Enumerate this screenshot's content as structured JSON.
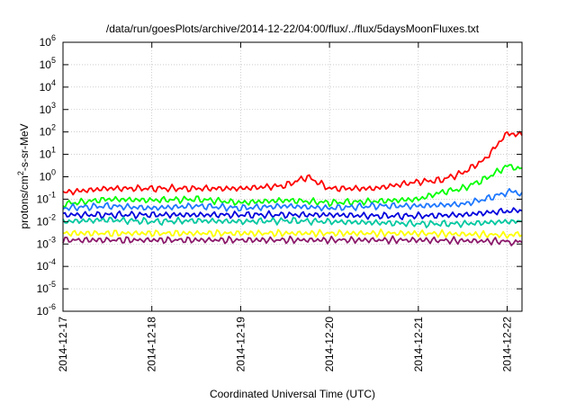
{
  "chart_data": {
    "type": "line",
    "title": "/data/run/goesPlots/archive/2014-12-22/04:00/flux/../flux/5daysMoonFluxes.txt",
    "xlabel": "Coordinated Universal Time (UTC)",
    "ylabel": {
      "pre": "protons/cm",
      "sup": "2",
      "post": "-s-sr-MeV"
    },
    "y_scale": "log",
    "ylim": [
      1e-06,
      1000000.0
    ],
    "y_ticks": [
      {
        "base": "10",
        "exp": "-6",
        "value": 1e-06
      },
      {
        "base": "10",
        "exp": "-5",
        "value": 1e-05
      },
      {
        "base": "10",
        "exp": "-4",
        "value": 0.0001
      },
      {
        "base": "10",
        "exp": "-3",
        "value": 0.001
      },
      {
        "base": "10",
        "exp": "-2",
        "value": 0.01
      },
      {
        "base": "10",
        "exp": "-1",
        "value": 0.1
      },
      {
        "base": "10",
        "exp": "0",
        "value": 1
      },
      {
        "base": "10",
        "exp": "1",
        "value": 10
      },
      {
        "base": "10",
        "exp": "2",
        "value": 100
      },
      {
        "base": "10",
        "exp": "3",
        "value": 1000
      },
      {
        "base": "10",
        "exp": "4",
        "value": 10000
      },
      {
        "base": "10",
        "exp": "5",
        "value": 100000
      },
      {
        "base": "10",
        "exp": "6",
        "value": 1000000
      }
    ],
    "x_ticks": [
      "2014-12-17",
      "2014-12-18",
      "2014-12-19",
      "2014-12-20",
      "2014-12-21",
      "2014-12-22"
    ],
    "xlim": [
      "2014-12-17T00:00",
      "2014-12-22T04:00"
    ],
    "grid": true,
    "legend": "none",
    "series": [
      {
        "color": "#ff0000",
        "x": [
          "2014-12-17T00:00",
          "2014-12-17T12:00",
          "2014-12-18T00:00",
          "2014-12-18T12:00",
          "2014-12-19T00:00",
          "2014-12-19T12:00",
          "2014-12-19T18:00",
          "2014-12-20T00:00",
          "2014-12-20T12:00",
          "2014-12-21T00:00",
          "2014-12-21T06:00",
          "2014-12-21T12:00",
          "2014-12-21T18:00",
          "2014-12-22T00:00",
          "2014-12-22T04:00"
        ],
        "y": [
          0.2,
          0.3,
          0.3,
          0.3,
          0.3,
          0.4,
          1.0,
          0.3,
          0.3,
          0.6,
          0.7,
          1.5,
          6,
          90,
          70
        ]
      },
      {
        "color": "#00ff00",
        "x": [
          "2014-12-17T00:00",
          "2014-12-17T12:00",
          "2014-12-18T00:00",
          "2014-12-18T12:00",
          "2014-12-19T00:00",
          "2014-12-19T12:00",
          "2014-12-20T00:00",
          "2014-12-20T12:00",
          "2014-12-21T00:00",
          "2014-12-21T06:00",
          "2014-12-21T12:00",
          "2014-12-21T18:00",
          "2014-12-22T00:00",
          "2014-12-22T04:00"
        ],
        "y": [
          0.06,
          0.1,
          0.09,
          0.1,
          0.07,
          0.09,
          0.07,
          0.08,
          0.1,
          0.2,
          0.3,
          0.8,
          3,
          2.5
        ]
      },
      {
        "color": "#1e78ff",
        "x": [
          "2014-12-17T00:00",
          "2014-12-17T12:00",
          "2014-12-18T00:00",
          "2014-12-18T12:00",
          "2014-12-19T00:00",
          "2014-12-19T12:00",
          "2014-12-20T00:00",
          "2014-12-20T12:00",
          "2014-12-21T00:00",
          "2014-12-21T12:00",
          "2014-12-21T18:00",
          "2014-12-22T00:00",
          "2014-12-22T04:00"
        ],
        "y": [
          0.04,
          0.05,
          0.04,
          0.05,
          0.04,
          0.05,
          0.04,
          0.05,
          0.05,
          0.06,
          0.1,
          0.2,
          0.2
        ]
      },
      {
        "color": "#0000dd",
        "x": [
          "2014-12-17T00:00",
          "2014-12-17T12:00",
          "2014-12-18T00:00",
          "2014-12-18T12:00",
          "2014-12-19T00:00",
          "2014-12-19T12:00",
          "2014-12-20T00:00",
          "2014-12-20T12:00",
          "2014-12-21T00:00",
          "2014-12-21T12:00",
          "2014-12-22T00:00",
          "2014-12-22T04:00"
        ],
        "y": [
          0.02,
          0.02,
          0.02,
          0.02,
          0.02,
          0.02,
          0.02,
          0.018,
          0.018,
          0.02,
          0.03,
          0.03
        ]
      },
      {
        "color": "#00c8a0",
        "x": [
          "2014-12-17T00:00",
          "2014-12-17T12:00",
          "2014-12-18T00:00",
          "2014-12-18T12:00",
          "2014-12-19T00:00",
          "2014-12-19T12:00",
          "2014-12-20T00:00",
          "2014-12-20T12:00",
          "2014-12-21T00:00",
          "2014-12-21T12:00",
          "2014-12-22T00:00",
          "2014-12-22T04:00"
        ],
        "y": [
          0.01,
          0.012,
          0.01,
          0.011,
          0.01,
          0.011,
          0.01,
          0.009,
          0.008,
          0.008,
          0.01,
          0.01
        ]
      },
      {
        "color": "#ffff00",
        "x": [
          "2014-12-17T00:00",
          "2014-12-18T00:00",
          "2014-12-19T00:00",
          "2014-12-20T00:00",
          "2014-12-21T00:00",
          "2014-12-22T00:00",
          "2014-12-22T04:00"
        ],
        "y": [
          0.003,
          0.003,
          0.003,
          0.003,
          0.003,
          0.0025,
          0.0025
        ]
      },
      {
        "color": "#8b1a6b",
        "x": [
          "2014-12-17T00:00",
          "2014-12-18T00:00",
          "2014-12-19T00:00",
          "2014-12-20T00:00",
          "2014-12-21T00:00",
          "2014-12-22T00:00",
          "2014-12-22T04:00"
        ],
        "y": [
          0.0015,
          0.0015,
          0.0015,
          0.0015,
          0.0015,
          0.0013,
          0.0012
        ]
      }
    ]
  }
}
